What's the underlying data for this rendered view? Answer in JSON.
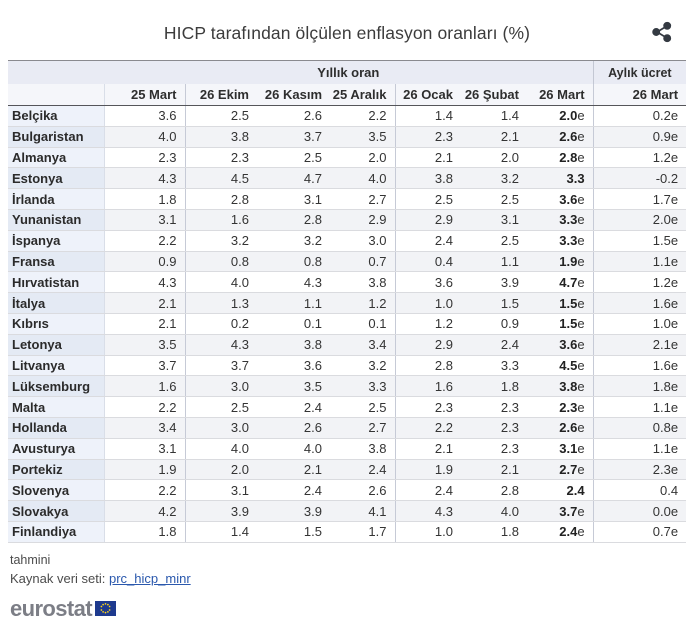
{
  "title": "HICP tarafından ölçülen enflasyon oranları (%)",
  "table": {
    "group_header_annual": "Yıllık oran",
    "group_header_monthly": "Aylık ücret",
    "columns_annual": [
      "25 Mart",
      "26 Ekim",
      "26 Kasım",
      "25 Aralık",
      "26 Ocak",
      "26 Şubat",
      "26 Mart"
    ],
    "column_monthly": "26 Mart"
  },
  "chart_data": {
    "type": "table",
    "title": "HICP tarafından ölçülen enflasyon oranları (%)",
    "column_groups": [
      {
        "label": "Yıllık oran",
        "span": 7
      },
      {
        "label": "Aylık ücret",
        "span": 1
      }
    ],
    "columns": [
      "25 Mart",
      "26 Ekim",
      "26 Kasım",
      "25 Aralık",
      "26 Ocak",
      "26 Şubat",
      "26 Mart",
      "26 Mart"
    ],
    "estimate_suffix": "e",
    "rows": [
      {
        "country": "Belçika",
        "values": [
          "3.6",
          "2.5",
          "2.6",
          "2.2",
          "1.4",
          "1.4",
          "2.0e",
          "0.2e"
        ]
      },
      {
        "country": "Bulgaristan",
        "values": [
          "4.0",
          "3.8",
          "3.7",
          "3.5",
          "2.3",
          "2.1",
          "2.6e",
          "0.9e"
        ]
      },
      {
        "country": "Almanya",
        "values": [
          "2.3",
          "2.3",
          "2.5",
          "2.0",
          "2.1",
          "2.0",
          "2.8e",
          "1.2e"
        ]
      },
      {
        "country": "Estonya",
        "values": [
          "4.3",
          "4.5",
          "4.7",
          "4.0",
          "3.8",
          "3.2",
          "3.3",
          "-0.2"
        ]
      },
      {
        "country": "İrlanda",
        "values": [
          "1.8",
          "2.8",
          "3.1",
          "2.7",
          "2.5",
          "2.5",
          "3.6e",
          "1.7e"
        ]
      },
      {
        "country": "Yunanistan",
        "values": [
          "3.1",
          "1.6",
          "2.8",
          "2.9",
          "2.9",
          "3.1",
          "3.3e",
          "2.0e"
        ]
      },
      {
        "country": "İspanya",
        "values": [
          "2.2",
          "3.2",
          "3.2",
          "3.0",
          "2.4",
          "2.5",
          "3.3e",
          "1.5e"
        ]
      },
      {
        "country": "Fransa",
        "values": [
          "0.9",
          "0.8",
          "0.8",
          "0.7",
          "0.4",
          "1.1",
          "1.9e",
          "1.1e"
        ]
      },
      {
        "country": "Hırvatistan",
        "values": [
          "4.3",
          "4.0",
          "4.3",
          "3.8",
          "3.6",
          "3.9",
          "4.7e",
          "1.2e"
        ]
      },
      {
        "country": "İtalya",
        "values": [
          "2.1",
          "1.3",
          "1.1",
          "1.2",
          "1.0",
          "1.5",
          "1.5e",
          "1.6e"
        ]
      },
      {
        "country": "Kıbrıs",
        "values": [
          "2.1",
          "0.2",
          "0.1",
          "0.1",
          "1.2",
          "0.9",
          "1.5e",
          "1.0e"
        ]
      },
      {
        "country": "Letonya",
        "values": [
          "3.5",
          "4.3",
          "3.8",
          "3.4",
          "2.9",
          "2.4",
          "3.6e",
          "2.1e"
        ]
      },
      {
        "country": "Litvanya",
        "values": [
          "3.7",
          "3.7",
          "3.6",
          "3.2",
          "2.8",
          "3.3",
          "4.5e",
          "1.6e"
        ]
      },
      {
        "country": "Lüksemburg",
        "values": [
          "1.6",
          "3.0",
          "3.5",
          "3.3",
          "1.6",
          "1.8",
          "3.8e",
          "1.8e"
        ]
      },
      {
        "country": "Malta",
        "values": [
          "2.2",
          "2.5",
          "2.4",
          "2.5",
          "2.3",
          "2.3",
          "2.3e",
          "1.1e"
        ]
      },
      {
        "country": "Hollanda",
        "values": [
          "3.4",
          "3.0",
          "2.6",
          "2.7",
          "2.2",
          "2.3",
          "2.6e",
          "0.8e"
        ]
      },
      {
        "country": "Avusturya",
        "values": [
          "3.1",
          "4.0",
          "4.0",
          "3.8",
          "2.1",
          "2.3",
          "3.1e",
          "1.1e"
        ]
      },
      {
        "country": "Portekiz",
        "values": [
          "1.9",
          "2.0",
          "2.1",
          "2.4",
          "1.9",
          "2.1",
          "2.7e",
          "2.3e"
        ]
      },
      {
        "country": "Slovenya",
        "values": [
          "2.2",
          "3.1",
          "2.4",
          "2.6",
          "2.4",
          "2.8",
          "2.4",
          "0.4"
        ]
      },
      {
        "country": "Slovakya",
        "values": [
          "4.2",
          "3.9",
          "3.9",
          "4.1",
          "4.3",
          "4.0",
          "3.7e",
          "0.0e"
        ]
      },
      {
        "country": "Finlandiya",
        "values": [
          "1.8",
          "1.4",
          "1.5",
          "1.7",
          "1.0",
          "1.8",
          "2.4e",
          "0.7e"
        ]
      }
    ]
  },
  "footer": {
    "note": "tahmini",
    "source_label": "Kaynak veri seti: ",
    "source_link": "prc_hicp_minr",
    "logo_text": "eurostat"
  },
  "colors": {
    "header_bg": "#e9ebf4",
    "row_alt_bg": "#f2f3f6",
    "country_col_bg": "#eef2fa",
    "country_col_alt_bg": "#e4eaf4",
    "link": "#2a58ad",
    "logo_gray": "#7c7e86",
    "flag_blue": "#1e3a8e",
    "star_yellow": "#ffd617",
    "share_icon": "#343a42"
  }
}
